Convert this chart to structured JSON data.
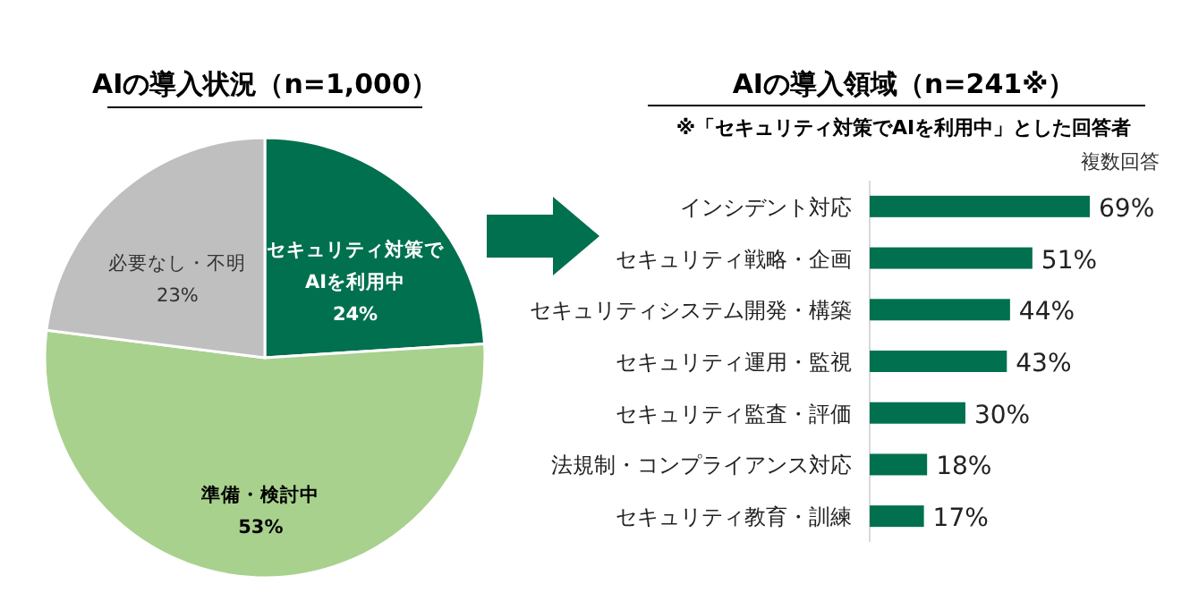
{
  "chart_data": [
    {
      "type": "pie",
      "title": "AIの導入状況（n=1,000）",
      "categories": [
        "セキュリティ対策でAIを利用中",
        "準備・検討中",
        "必要なし・不明"
      ],
      "values": [
        24,
        53,
        23
      ],
      "colors": [
        "#00704f",
        "#a9d18e",
        "#bfbfbf"
      ],
      "value_labels": [
        "24%",
        "53%",
        "23%"
      ]
    },
    {
      "type": "bar",
      "orientation": "horizontal",
      "title": "AIの導入領域（n=241※）",
      "subtitle": "※「セキュリティ対策でAIを利用中」とした回答者",
      "annotations": [
        "複数回答"
      ],
      "categories": [
        "インシデント対応",
        "セキュリティ戦略・企画",
        "セキュリティシステム開発・構築",
        "セキュリティ運用・監視",
        "セキュリティ監査・評価",
        "法規制・コンプライアンス対応",
        "セキュリティ教育・訓練"
      ],
      "color": "#00704f",
      "values": [
        69,
        51,
        44,
        43,
        30,
        18,
        17
      ],
      "value_labels": [
        "69%",
        "51%",
        "44%",
        "43%",
        "30%",
        "18%",
        "17%"
      ]
    }
  ]
}
